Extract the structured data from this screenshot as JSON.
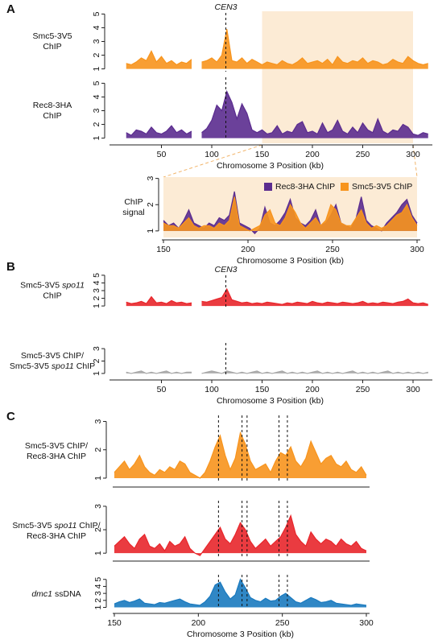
{
  "panel_labels": [
    "A",
    "B",
    "C"
  ],
  "chart_data": [
    {
      "type": "area",
      "ylabel": [
        [
          {
            "text": "Smc5-3V5"
          }
        ],
        [
          {
            "text": "ChIP"
          }
        ]
      ],
      "color": "#f7941d",
      "xlim": [
        0,
        316
      ],
      "ylim": [
        0.8,
        5.2
      ],
      "yticks": [
        1,
        2,
        3,
        4,
        5
      ],
      "highlight": [
        150,
        300
      ],
      "annotation": {
        "text": "CEN3",
        "x": 114
      },
      "x": [
        15,
        20,
        25,
        30,
        35,
        40,
        45,
        50,
        55,
        60,
        65,
        70,
        75,
        80,
        85,
        90,
        95,
        100,
        105,
        110,
        115,
        120,
        125,
        130,
        135,
        140,
        145,
        150,
        155,
        160,
        165,
        170,
        175,
        180,
        185,
        190,
        195,
        200,
        205,
        210,
        215,
        220,
        225,
        230,
        235,
        240,
        245,
        250,
        255,
        260,
        265,
        270,
        275,
        280,
        285,
        290,
        295,
        300,
        305,
        310,
        315
      ],
      "values": [
        1.4,
        1.3,
        1.5,
        1.8,
        1.6,
        2.3,
        1.5,
        1.9,
        1.4,
        1.6,
        1.3,
        1.5,
        1.4,
        1.7,
        null,
        1.5,
        1.6,
        1.8,
        1.5,
        2.0,
        3.9,
        1.6,
        1.5,
        1.8,
        1.4,
        1.7,
        1.5,
        1.3,
        1.5,
        1.4,
        1.3,
        1.6,
        1.4,
        1.3,
        1.5,
        1.8,
        1.4,
        1.5,
        1.6,
        1.4,
        1.7,
        1.3,
        1.9,
        1.5,
        1.4,
        1.6,
        1.5,
        1.8,
        1.4,
        1.6,
        1.5,
        1.3,
        1.4,
        1.7,
        1.5,
        1.4,
        1.9,
        1.6,
        1.4,
        1.3,
        1.4
      ]
    },
    {
      "type": "area",
      "ylabel": [
        [
          {
            "text": "Rec8-3HA"
          }
        ],
        [
          {
            "text": "ChIP"
          }
        ]
      ],
      "color": "#5b2c8f",
      "xlim": [
        0,
        316
      ],
      "ylim": [
        0.8,
        5.2
      ],
      "yticks": [
        1,
        2,
        3,
        4,
        5
      ],
      "xticks": [
        50,
        100,
        150,
        200,
        250,
        300
      ],
      "xlabel": "Chromosome 3 Position (kb)",
      "highlight": [
        150,
        300
      ],
      "vlines": [
        114
      ],
      "x": [
        15,
        20,
        25,
        30,
        35,
        40,
        45,
        50,
        55,
        60,
        65,
        70,
        75,
        80,
        85,
        90,
        95,
        100,
        105,
        110,
        115,
        120,
        125,
        130,
        135,
        140,
        145,
        150,
        155,
        160,
        165,
        170,
        175,
        180,
        185,
        190,
        195,
        200,
        205,
        210,
        215,
        220,
        225,
        230,
        235,
        240,
        245,
        250,
        255,
        260,
        265,
        270,
        275,
        280,
        285,
        290,
        295,
        300,
        305,
        310,
        315
      ],
      "values": [
        1.4,
        1.2,
        1.6,
        1.5,
        1.3,
        1.8,
        1.4,
        1.3,
        1.5,
        1.9,
        1.4,
        1.6,
        1.3,
        1.5,
        null,
        1.4,
        1.7,
        2.3,
        3.4,
        3.0,
        4.4,
        3.6,
        2.4,
        3.5,
        2.8,
        1.6,
        1.4,
        1.6,
        1.3,
        1.4,
        1.9,
        1.3,
        1.5,
        1.4,
        2.0,
        2.2,
        1.4,
        1.5,
        1.3,
        2.1,
        1.4,
        1.6,
        2.3,
        1.5,
        1.3,
        1.8,
        1.4,
        2.1,
        1.6,
        1.4,
        2.4,
        1.5,
        1.3,
        1.6,
        1.5,
        2.0,
        1.8,
        1.3,
        1.2,
        1.4,
        1.3
      ]
    },
    {
      "type": "area",
      "ylabel": [
        [
          {
            "text": "ChIP"
          }
        ],
        [
          {
            "text": "signal"
          }
        ]
      ],
      "xlim": [
        150,
        300
      ],
      "ylim": [
        0.75,
        3.05
      ],
      "yticks": [
        1,
        2,
        3
      ],
      "xticks": [
        150,
        200,
        250,
        300
      ],
      "xlabel": "Chromosome 3 Position (kb)",
      "highlight": [
        150,
        300
      ],
      "legend": "top-right",
      "x": [
        150,
        153,
        156,
        159,
        162,
        165,
        168,
        171,
        174,
        177,
        180,
        183,
        186,
        189,
        192,
        195,
        198,
        201,
        204,
        207,
        210,
        213,
        216,
        219,
        222,
        225,
        228,
        231,
        234,
        237,
        240,
        243,
        246,
        249,
        252,
        255,
        258,
        261,
        264,
        267,
        270,
        273,
        276,
        279,
        282,
        285,
        288,
        291,
        294,
        297,
        300
      ],
      "series": [
        {
          "name": "Rec8-3HA ChIP",
          "color": "#5b2c8f",
          "values": [
            1.4,
            1.2,
            1.3,
            1.1,
            1.4,
            1.8,
            1.3,
            1.2,
            1.1,
            1.3,
            1.2,
            1.5,
            1.4,
            1.6,
            2.5,
            1.3,
            1.2,
            1.1,
            0.9,
            1.1,
            1.9,
            1.3,
            1.2,
            1.4,
            1.7,
            2.2,
            1.5,
            1.3,
            1.2,
            1.4,
            1.8,
            1.2,
            1.3,
            1.6,
            2.0,
            1.3,
            1.2,
            1.1,
            1.5,
            2.3,
            1.4,
            1.2,
            1.1,
            1.0,
            1.3,
            1.5,
            1.7,
            2.0,
            2.2,
            1.6,
            1.3
          ]
        },
        {
          "name": "Smc5-3V5 ChIP",
          "color": "#f7941d",
          "values": [
            1.3,
            1.2,
            1.2,
            1.1,
            1.3,
            1.5,
            1.2,
            1.1,
            1.2,
            1.2,
            1.1,
            1.3,
            1.2,
            1.4,
            2.3,
            1.2,
            1.1,
            1.0,
            1.1,
            1.2,
            1.6,
            1.8,
            1.3,
            1.2,
            1.5,
            2.0,
            1.7,
            1.3,
            1.1,
            1.3,
            1.5,
            1.2,
            1.4,
            2.0,
            1.8,
            1.3,
            1.2,
            1.2,
            1.5,
            1.8,
            1.3,
            1.1,
            1.2,
            1.1,
            1.2,
            1.4,
            1.6,
            1.7,
            2.0,
            1.5,
            1.2
          ]
        }
      ]
    },
    {
      "type": "area",
      "ylabel": [
        [
          {
            "text": "Smc5-3V5"
          },
          {
            "text": "spo11",
            "italic": true
          }
        ],
        [
          {
            "text": "ChIP"
          }
        ]
      ],
      "color": "#e8262b",
      "xlim": [
        0,
        316
      ],
      "ylim": [
        0.8,
        5.2
      ],
      "yticks": [
        1,
        2,
        3,
        4,
        5
      ],
      "annotation": {
        "text": "CEN3",
        "x": 114
      },
      "x": [
        15,
        20,
        25,
        30,
        35,
        40,
        45,
        50,
        55,
        60,
        65,
        70,
        75,
        80,
        85,
        90,
        95,
        100,
        105,
        110,
        115,
        120,
        125,
        130,
        135,
        140,
        145,
        150,
        155,
        160,
        165,
        170,
        175,
        180,
        185,
        190,
        195,
        200,
        205,
        210,
        215,
        220,
        225,
        230,
        235,
        240,
        245,
        250,
        255,
        260,
        265,
        270,
        275,
        280,
        285,
        290,
        295,
        300,
        305,
        310,
        315
      ],
      "values": [
        1.5,
        1.3,
        1.4,
        1.6,
        1.3,
        2.2,
        1.4,
        1.5,
        1.3,
        1.7,
        1.4,
        1.5,
        1.3,
        1.4,
        null,
        1.6,
        1.5,
        1.7,
        1.9,
        2.1,
        3.2,
        1.8,
        1.6,
        1.4,
        1.5,
        1.3,
        1.4,
        1.3,
        1.5,
        1.4,
        1.3,
        1.2,
        1.4,
        1.3,
        1.5,
        1.4,
        1.3,
        1.6,
        1.4,
        1.3,
        1.5,
        1.4,
        1.3,
        1.5,
        1.4,
        1.3,
        1.4,
        1.6,
        1.3,
        1.4,
        1.3,
        1.5,
        1.4,
        1.3,
        1.5,
        1.6,
        1.9,
        1.4,
        1.3,
        1.4,
        1.2
      ]
    },
    {
      "type": "area",
      "ylabel": [
        [
          {
            "text": "Smc5-3V5 ChIP/"
          }
        ],
        [
          {
            "text": "Smc5-3V5"
          },
          {
            "text": "spo11",
            "italic": true
          },
          {
            "text": "ChIP"
          }
        ]
      ],
      "color": "#a6a6a6",
      "xlim": [
        0,
        316
      ],
      "ylim": [
        0.8,
        3.2
      ],
      "yticks": [
        1,
        2,
        3
      ],
      "xticks": [
        50,
        100,
        150,
        200,
        250,
        300
      ],
      "xlabel": "Chromosome 3 Position (kb)",
      "vlines": [
        114
      ],
      "x": [
        15,
        20,
        25,
        30,
        35,
        40,
        45,
        50,
        55,
        60,
        65,
        70,
        75,
        80,
        85,
        90,
        95,
        100,
        105,
        110,
        115,
        120,
        125,
        130,
        135,
        140,
        145,
        150,
        155,
        160,
        165,
        170,
        175,
        180,
        185,
        190,
        195,
        200,
        205,
        210,
        215,
        220,
        225,
        230,
        235,
        240,
        245,
        250,
        255,
        260,
        265,
        270,
        275,
        280,
        285,
        290,
        295,
        300,
        305,
        310,
        315
      ],
      "values": [
        1.1,
        1.0,
        1.1,
        1.2,
        1.0,
        1.1,
        1.0,
        1.1,
        1.2,
        1.0,
        1.1,
        1.0,
        1.1,
        1.1,
        null,
        1.0,
        1.1,
        1.2,
        1.1,
        1.0,
        1.2,
        1.1,
        1.0,
        1.1,
        1.0,
        1.1,
        1.2,
        1.0,
        1.1,
        1.0,
        1.1,
        1.2,
        1.0,
        1.1,
        1.0,
        1.1,
        1.0,
        1.1,
        1.2,
        1.0,
        1.1,
        1.0,
        1.1,
        1.0,
        1.1,
        1.2,
        1.0,
        1.1,
        1.0,
        1.1,
        1.0,
        1.1,
        1.2,
        1.0,
        1.1,
        1.0,
        1.1,
        1.0,
        1.1,
        1.0,
        1.1
      ]
    },
    {
      "type": "area",
      "ylabel": [
        [
          {
            "text": "Smc5-3V5 ChIP/"
          }
        ],
        [
          {
            "text": "Rec8-3HA ChIP"
          }
        ]
      ],
      "color": "#f7941d",
      "xlim": [
        150,
        300
      ],
      "ylim": [
        0.8,
        3.1
      ],
      "yticks": [
        1,
        2,
        3
      ],
      "vlines": [
        212,
        226,
        229,
        248,
        253
      ],
      "x": [
        150,
        153,
        156,
        159,
        162,
        165,
        168,
        171,
        174,
        177,
        180,
        183,
        186,
        189,
        192,
        195,
        198,
        201,
        204,
        207,
        210,
        213,
        216,
        219,
        222,
        225,
        228,
        231,
        234,
        237,
        240,
        243,
        246,
        249,
        252,
        255,
        258,
        261,
        264,
        267,
        270,
        273,
        276,
        279,
        282,
        285,
        288,
        291,
        294,
        297,
        300
      ],
      "values": [
        1.2,
        1.4,
        1.6,
        1.3,
        1.5,
        1.8,
        1.4,
        1.2,
        1.1,
        1.3,
        1.2,
        1.4,
        1.3,
        1.6,
        1.5,
        1.2,
        1.1,
        1.0,
        1.2,
        1.6,
        2.1,
        2.5,
        1.8,
        1.3,
        1.7,
        2.6,
        2.2,
        1.6,
        1.3,
        1.4,
        1.5,
        1.2,
        1.6,
        1.9,
        1.8,
        2.1,
        1.6,
        1.4,
        1.7,
        2.3,
        1.9,
        1.5,
        1.7,
        1.8,
        1.5,
        1.4,
        1.6,
        1.3,
        1.2,
        1.4,
        1.1
      ]
    },
    {
      "type": "area",
      "ylabel": [
        [
          {
            "text": "Smc5-3V5"
          },
          {
            "text": "spo11",
            "italic": true
          },
          {
            "text": "ChIP/"
          }
        ],
        [
          {
            "text": "Rec8-3HA ChIP"
          }
        ]
      ],
      "color": "#e8262b",
      "xlim": [
        150,
        300
      ],
      "ylim": [
        0.8,
        3.1
      ],
      "yticks": [
        1,
        2,
        3
      ],
      "vlines": [
        212,
        226,
        229,
        248,
        253
      ],
      "x": [
        150,
        153,
        156,
        159,
        162,
        165,
        168,
        171,
        174,
        177,
        180,
        183,
        186,
        189,
        192,
        195,
        198,
        201,
        204,
        207,
        210,
        213,
        216,
        219,
        222,
        225,
        228,
        231,
        234,
        237,
        240,
        243,
        246,
        249,
        252,
        255,
        258,
        261,
        264,
        267,
        270,
        273,
        276,
        279,
        282,
        285,
        288,
        291,
        294,
        297,
        300
      ],
      "values": [
        1.3,
        1.5,
        1.7,
        1.4,
        1.2,
        1.6,
        1.8,
        1.3,
        1.2,
        1.4,
        1.1,
        1.5,
        1.3,
        1.4,
        1.7,
        1.2,
        1.0,
        0.9,
        1.2,
        1.5,
        1.8,
        2.1,
        1.6,
        1.4,
        1.8,
        2.3,
        2.0,
        1.5,
        1.2,
        1.4,
        1.6,
        1.3,
        1.5,
        1.7,
        2.1,
        2.6,
        1.8,
        1.5,
        1.3,
        1.9,
        1.6,
        1.4,
        1.6,
        1.5,
        1.3,
        1.6,
        1.4,
        1.3,
        1.5,
        1.2,
        1.1
      ]
    },
    {
      "type": "area",
      "ylabel": [
        [
          {
            "text": "dmc1",
            "italic": true
          },
          {
            "text": "ssDNA"
          }
        ]
      ],
      "color": "#1a7abf",
      "xlim": [
        150,
        300
      ],
      "ylim": [
        0.6,
        5.2
      ],
      "yticks": [
        1,
        2,
        3,
        4,
        5
      ],
      "xticks": [
        150,
        200,
        250,
        300
      ],
      "xlabel": "Chromosome 3 Position (kb)",
      "vlines": [
        212,
        226,
        229,
        248,
        253
      ],
      "x": [
        150,
        153,
        156,
        159,
        162,
        165,
        168,
        171,
        174,
        177,
        180,
        183,
        186,
        189,
        192,
        195,
        198,
        201,
        204,
        207,
        210,
        213,
        216,
        219,
        222,
        225,
        228,
        231,
        234,
        237,
        240,
        243,
        246,
        249,
        252,
        255,
        258,
        261,
        264,
        267,
        270,
        273,
        276,
        279,
        282,
        285,
        288,
        291,
        294,
        297,
        300
      ],
      "values": [
        1.5,
        1.8,
        2.0,
        1.7,
        1.9,
        2.2,
        1.6,
        1.5,
        1.4,
        1.7,
        1.6,
        1.8,
        2.0,
        2.2,
        1.8,
        1.5,
        1.4,
        1.3,
        1.8,
        2.6,
        4.2,
        4.6,
        3.2,
        2.2,
        2.8,
        5.0,
        3.8,
        2.4,
        2.0,
        1.8,
        2.3,
        1.9,
        2.0,
        2.6,
        3.0,
        2.4,
        1.8,
        1.6,
        2.0,
        2.4,
        2.1,
        1.7,
        1.8,
        2.0,
        1.6,
        1.5,
        1.4,
        1.3,
        1.5,
        1.4,
        1.3
      ]
    }
  ]
}
